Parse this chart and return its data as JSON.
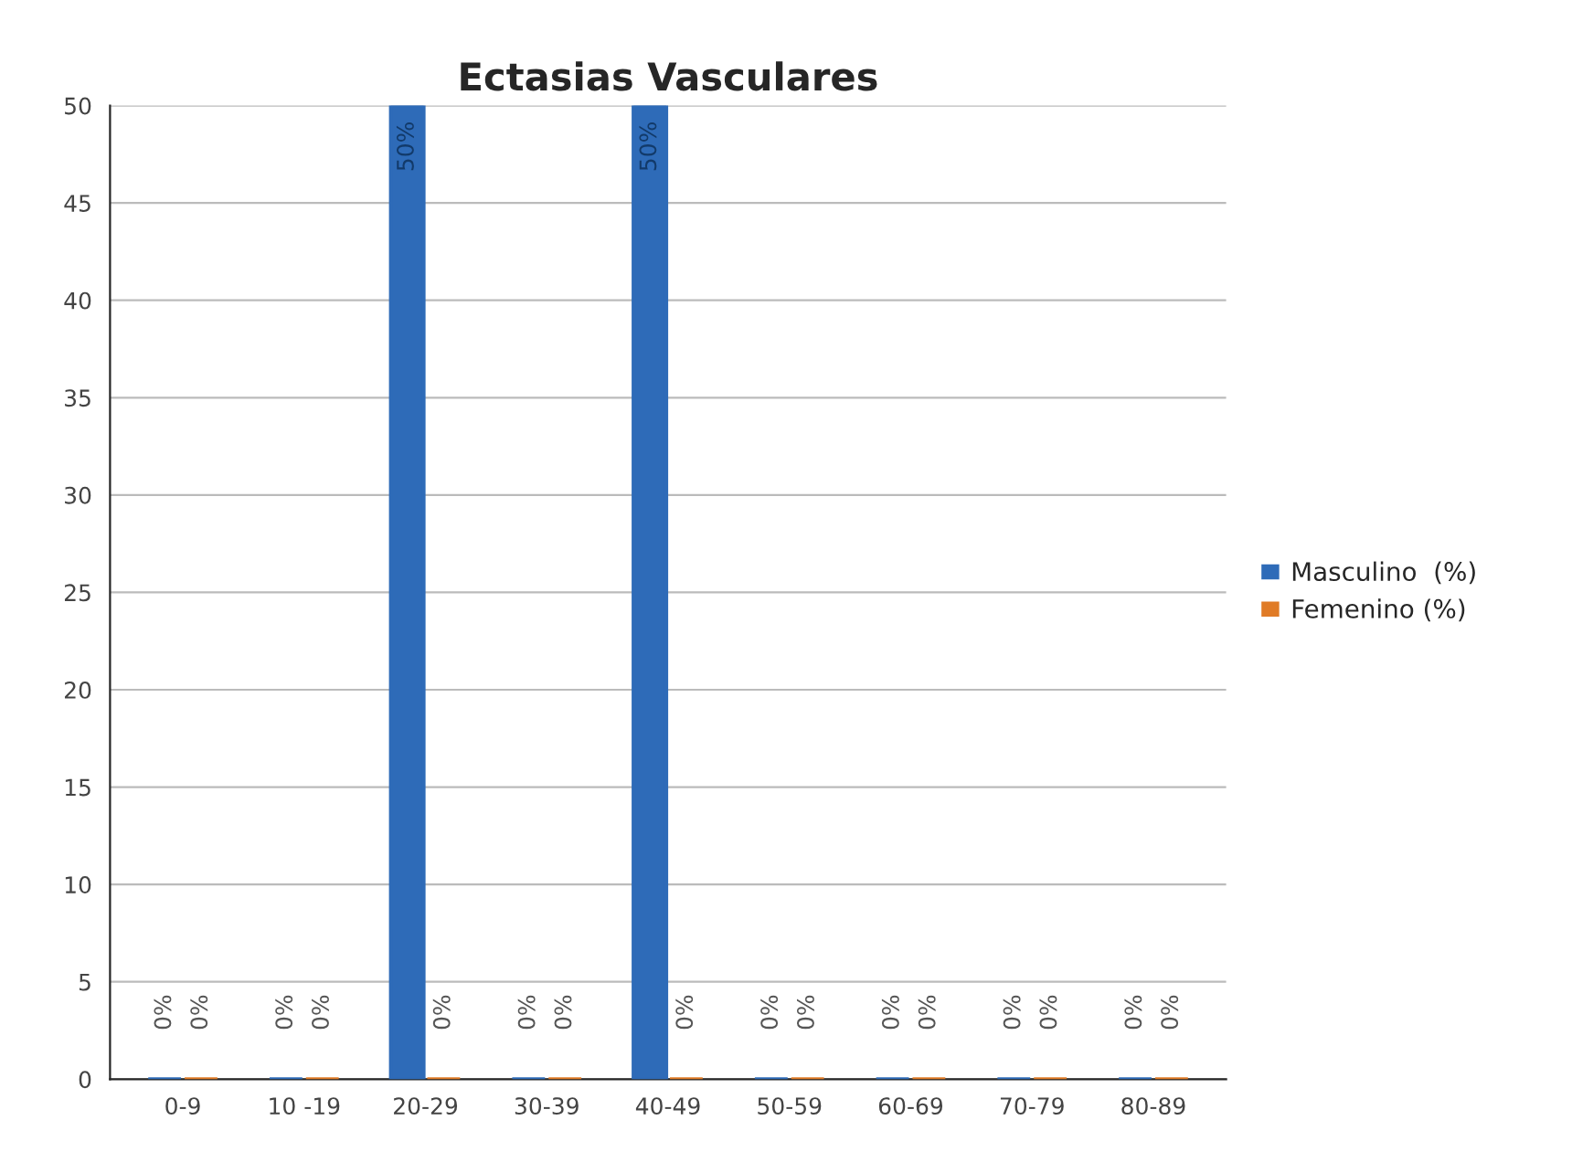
{
  "chart_data": {
    "type": "bar",
    "title": "Ectasias Vasculares",
    "categories": [
      "0-9",
      "10 -19",
      "20-29",
      "30-39",
      "40-49",
      "50-59",
      "60-69",
      "70-79",
      "80-89"
    ],
    "series": [
      {
        "name": "Masculino  (%)",
        "color": "#2e6bb8",
        "values": [
          0,
          0,
          50,
          0,
          50,
          0,
          0,
          0,
          0
        ],
        "value_labels": [
          "0%",
          "0%",
          "50%",
          "0%",
          "50%",
          "0%",
          "0%",
          "0%",
          "0%"
        ]
      },
      {
        "name": "Femenino (%)",
        "color": "#e07b26",
        "values": [
          0,
          0,
          0,
          0,
          0,
          0,
          0,
          0,
          0
        ],
        "value_labels": [
          "0%",
          "0%",
          "0%",
          "0%",
          "0%",
          "0%",
          "0%",
          "0%",
          "0%"
        ]
      }
    ],
    "ylim": [
      0,
      50
    ],
    "yticks": [
      0,
      5,
      10,
      15,
      20,
      25,
      30,
      35,
      40,
      45,
      50
    ],
    "grid": "y",
    "legend": "right"
  }
}
